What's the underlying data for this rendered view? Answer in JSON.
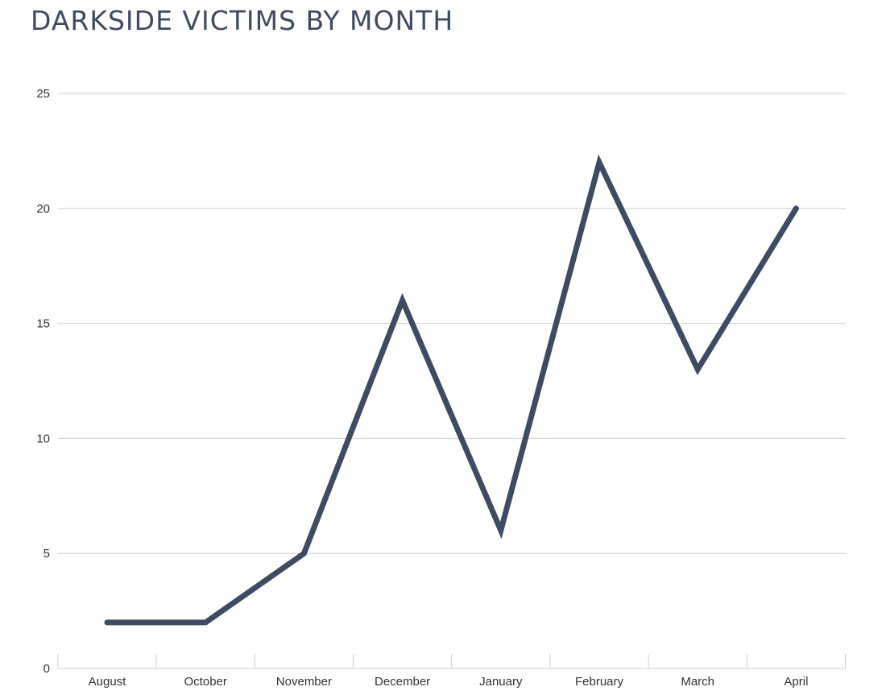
{
  "chart_data": {
    "type": "line",
    "title": "DARKSIDE VICTIMS BY MONTH",
    "xlabel": "",
    "ylabel": "",
    "categories": [
      "August",
      "October",
      "November",
      "December",
      "January",
      "February",
      "March",
      "April"
    ],
    "series": [
      {
        "values": [
          2,
          2,
          5,
          16,
          6,
          22,
          13,
          20
        ],
        "color": "#3e4c63"
      }
    ],
    "ylim": [
      0,
      25
    ],
    "yticks": [
      0,
      5,
      10,
      15,
      20,
      25
    ],
    "ytick_labels": [
      "0",
      "5",
      "10",
      "15",
      "20",
      "25"
    ],
    "grid": true,
    "legend": "none"
  }
}
